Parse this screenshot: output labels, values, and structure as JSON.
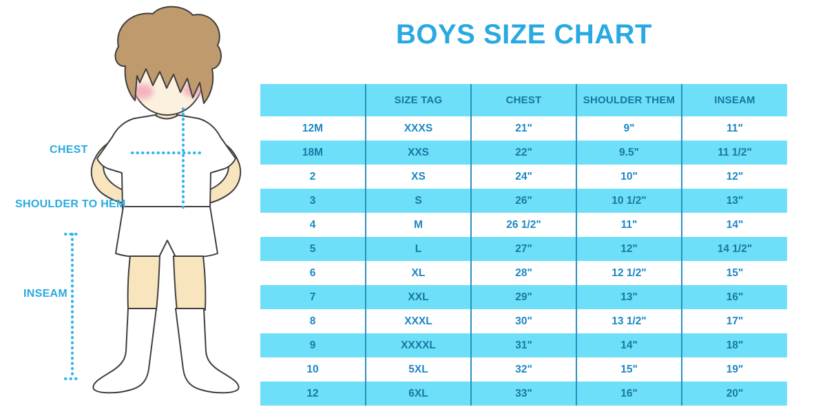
{
  "title": "BOYS SIZE CHART",
  "colors": {
    "accent_blue": "#29A9E1",
    "header_bg": "#6EDFF8",
    "stripe_bg": "#6EDFF8",
    "header_text": "#17769E",
    "cell_text": "#1A86C4",
    "cell_text_stripe": "#1878A4",
    "divider": "#2B90BC",
    "dotted_line": "#35B5E8"
  },
  "figure": {
    "description": "boy-illustration",
    "labels": {
      "chest": "CHEST",
      "shoulder_to_hem": "SHOULDER TO HEM",
      "inseam": "INSEAM"
    }
  },
  "chart_data": {
    "type": "table",
    "title": "BOYS SIZE CHART",
    "columns": [
      "",
      "SIZE TAG",
      "CHEST",
      "SHOULDER THEM",
      "INSEAM"
    ],
    "rows": [
      [
        "12M",
        "XXXS",
        "21\"",
        "9\"",
        "11\""
      ],
      [
        "18M",
        "XXS",
        "22\"",
        "9.5\"",
        "11 1/2\""
      ],
      [
        "2",
        "XS",
        "24\"",
        "10\"",
        "12\""
      ],
      [
        "3",
        "S",
        "26\"",
        "10 1/2\"",
        "13\""
      ],
      [
        "4",
        "M",
        "26 1/2\"",
        "11\"",
        "14\""
      ],
      [
        "5",
        "L",
        "27\"",
        "12\"",
        "14 1/2\""
      ],
      [
        "6",
        "XL",
        "28\"",
        "12 1/2\"",
        "15\""
      ],
      [
        "7",
        "XXL",
        "29\"",
        "13\"",
        "16\""
      ],
      [
        "8",
        "XXXL",
        "30\"",
        "13 1/2\"",
        "17\""
      ],
      [
        "9",
        "XXXXL",
        "31\"",
        "14\"",
        "18\""
      ],
      [
        "10",
        "5XL",
        "32\"",
        "15\"",
        "19\""
      ],
      [
        "12",
        "6XL",
        "33\"",
        "16\"",
        "20\""
      ]
    ],
    "layout": {
      "stripe_pattern": "alternating white / light-cyan rows, cyan header",
      "grid": "vertical column dividers only"
    }
  }
}
